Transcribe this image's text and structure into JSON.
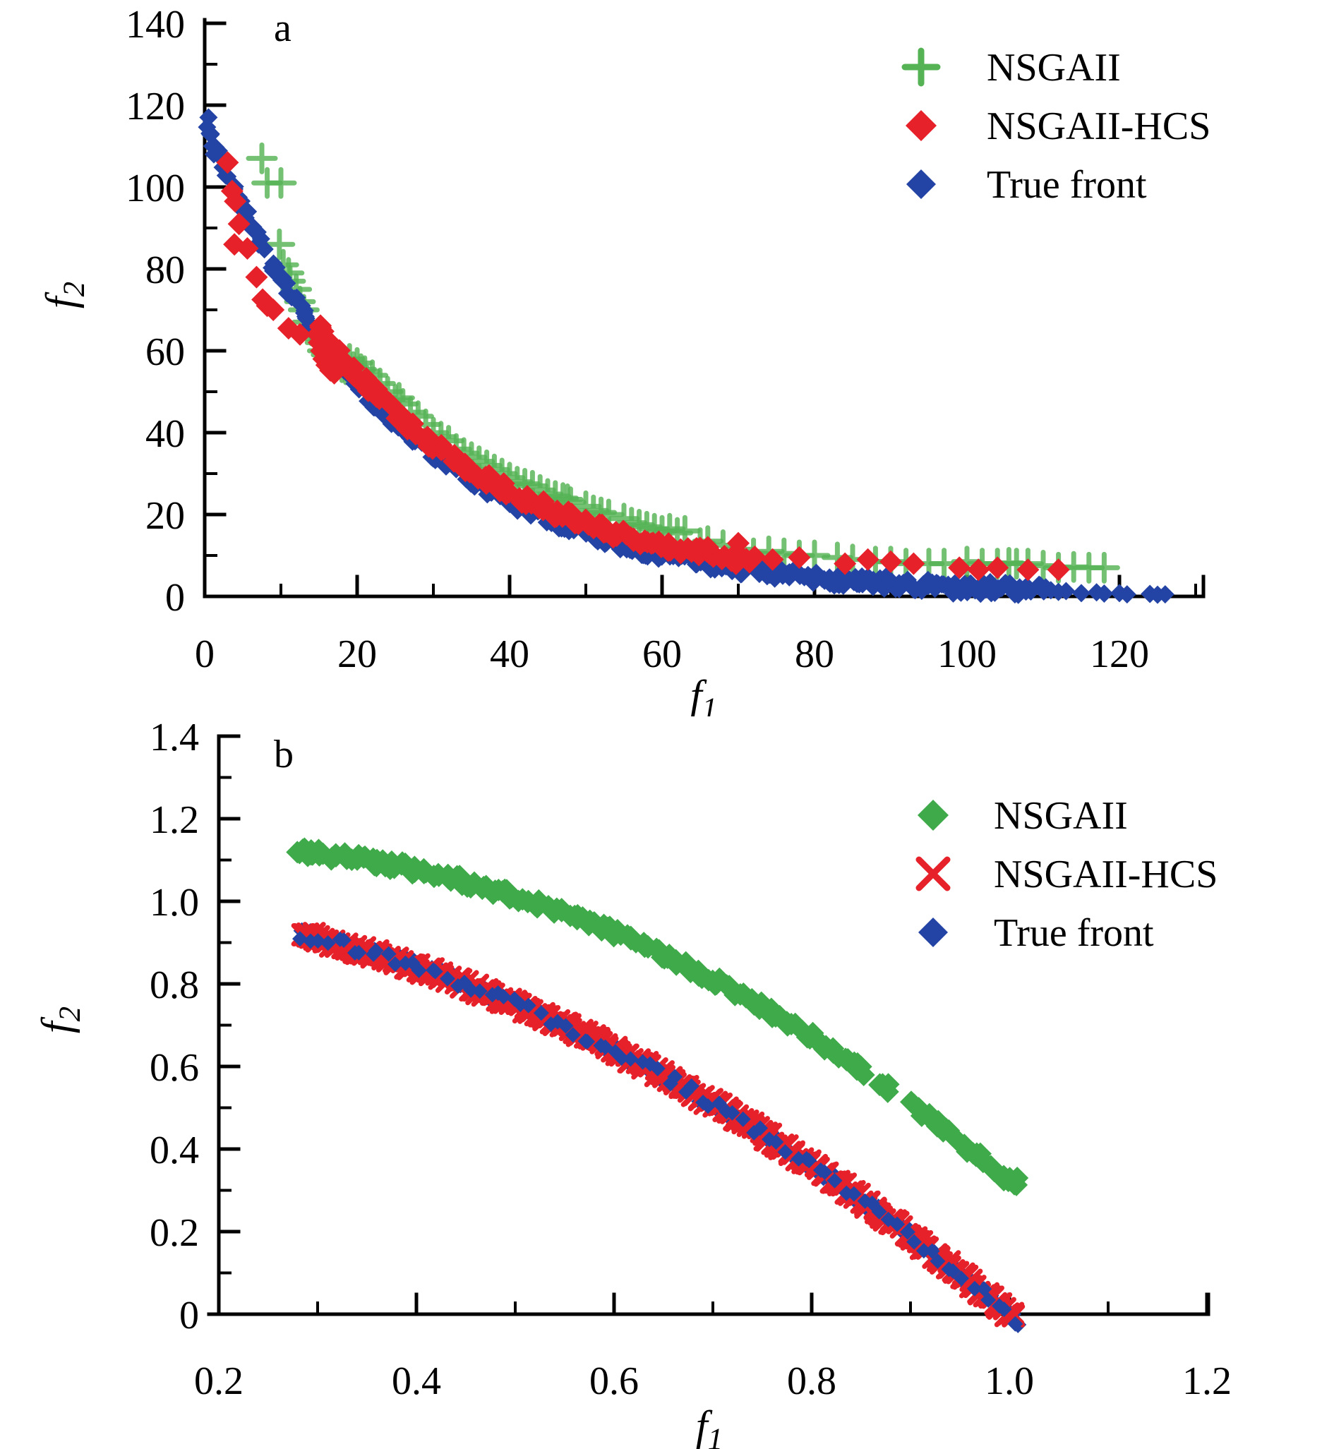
{
  "figure": {
    "background": "#ffffff",
    "description": "Two stacked scatter plots comparing Pareto fronts of NSGAII, NSGAII-HCS and the true front"
  },
  "chart_data": [
    {
      "id": "a",
      "type": "scatter",
      "panel_label": "a",
      "xlabel": {
        "base": "f",
        "sub": "1"
      },
      "ylabel": {
        "base": "f",
        "sub": "2"
      },
      "xlim": [
        0,
        131
      ],
      "ylim": [
        0,
        140.5
      ],
      "grid": false,
      "legend_position": "upper right",
      "xticks": [
        {
          "v": 0,
          "label": "0"
        },
        {
          "v": 20,
          "label": "20"
        },
        {
          "v": 40,
          "label": "40"
        },
        {
          "v": 60,
          "label": "60"
        },
        {
          "v": 80,
          "label": "80"
        },
        {
          "v": 100,
          "label": "100"
        },
        {
          "v": 120,
          "label": "120"
        }
      ],
      "xminor": [
        10,
        30,
        50,
        70,
        90,
        110,
        130
      ],
      "yticks": [
        {
          "v": 0,
          "label": "0"
        },
        {
          "v": 20,
          "label": "20"
        },
        {
          "v": 40,
          "label": "40"
        },
        {
          "v": 60,
          "label": "60"
        },
        {
          "v": 80,
          "label": "80"
        },
        {
          "v": 100,
          "label": "100"
        },
        {
          "v": 120,
          "label": "120"
        },
        {
          "v": 140,
          "label": "140"
        }
      ],
      "yminor": [
        10,
        30,
        50,
        70,
        90,
        110,
        130
      ],
      "frame": {
        "ox": 290,
        "oy": 845,
        "sx": 10.8,
        "sy": 5.8,
        "x_end": 1705,
        "y_top": 28
      },
      "tick": {
        "major": 28,
        "minor": 16
      },
      "fonts": {
        "tick": 56,
        "axis": 60,
        "legend": 56,
        "panel": 56
      },
      "label_pos": {
        "xlabels_y": 945,
        "ylabels_x": 262,
        "ylabel_dy": 20,
        "xlabel": [
          997,
          1005
        ],
        "ylabel": [
          106,
          418
        ],
        "panel": [
          388,
          58
        ]
      },
      "legend": {
        "marker_x": 1305,
        "text_x": 1398,
        "y0": 95,
        "dy": 83,
        "items": [
          {
            "label": "NSGAII",
            "marker": "plus",
            "color": "#55b356",
            "size": 23,
            "stroke": 9
          },
          {
            "label": "NSGAII-HCS",
            "marker": "diamond",
            "color": "#e6212a",
            "size": 22
          },
          {
            "label": "True front",
            "marker": "diamond",
            "color": "#2444a5",
            "size": 21
          }
        ]
      },
      "series": [
        {
          "name": "NSGAII",
          "marker": "plus",
          "color": "#55b356",
          "opacity": 0.82,
          "size": 19,
          "stroke": 7,
          "points": [
            [
              7.5,
              107
            ],
            [
              8.2,
              101
            ],
            [
              10,
              101
            ],
            [
              9.8,
              86
            ],
            [
              10.3,
              81
            ],
            [
              11,
              79
            ],
            [
              11.2,
              77
            ],
            [
              12,
              75
            ],
            [
              12.5,
              72
            ],
            [
              13,
              70
            ],
            [
              13.5,
              67
            ],
            [
              14,
              65
            ],
            [
              15,
              63
            ],
            [
              15.2,
              62
            ],
            [
              15.5,
              60
            ],
            [
              16,
              59
            ],
            [
              16.5,
              58
            ],
            [
              17,
              57.5
            ],
            [
              17.5,
              57
            ],
            [
              18,
              56
            ],
            [
              18.5,
              55.5
            ],
            [
              19,
              58
            ],
            [
              19.5,
              56
            ],
            [
              20,
              57
            ],
            [
              20.5,
              55.5
            ],
            [
              21,
              55
            ],
            [
              22,
              54
            ],
            [
              23,
              52
            ],
            [
              24,
              50
            ],
            [
              25,
              48
            ],
            [
              25.5,
              48.5
            ],
            [
              26,
              47
            ],
            [
              27,
              45
            ],
            [
              28,
              44
            ],
            [
              29,
              42
            ],
            [
              30,
              40
            ],
            [
              31,
              39
            ],
            [
              32,
              38
            ],
            [
              33,
              36
            ],
            [
              34,
              35
            ],
            [
              35,
              34
            ],
            [
              36,
              33
            ],
            [
              37,
              32
            ],
            [
              38,
              31
            ],
            [
              39,
              30
            ],
            [
              40,
              29
            ],
            [
              41,
              28
            ],
            [
              42,
              27.5
            ],
            [
              43,
              27
            ],
            [
              44,
              26
            ],
            [
              45,
              25
            ],
            [
              46,
              24.5
            ],
            [
              47,
              24
            ],
            [
              47.6,
              23.7
            ],
            [
              48,
              23
            ],
            [
              50,
              22
            ],
            [
              51,
              21
            ],
            [
              52,
              20.5
            ],
            [
              53,
              20
            ],
            [
              55,
              19
            ],
            [
              56,
              18
            ],
            [
              57,
              17.5
            ],
            [
              58,
              17
            ],
            [
              59,
              16.5
            ],
            [
              60,
              16
            ],
            [
              61,
              16.5
            ],
            [
              62,
              15.5
            ],
            [
              63,
              16
            ],
            [
              65,
              13
            ],
            [
              66,
              13.5
            ],
            [
              68,
              12.5
            ],
            [
              70,
              11.5
            ],
            [
              72,
              10.5
            ],
            [
              74,
              11
            ],
            [
              76,
              10.5
            ],
            [
              78,
              10
            ],
            [
              80,
              10
            ],
            [
              83,
              9.5
            ],
            [
              85,
              9
            ],
            [
              88,
              8.5
            ],
            [
              90,
              8.5
            ],
            [
              92,
              8
            ],
            [
              95,
              8
            ],
            [
              97,
              8
            ],
            [
              100,
              8.5
            ],
            [
              102,
              8
            ],
            [
              104,
              8
            ],
            [
              105.5,
              8.2
            ],
            [
              106.5,
              8
            ],
            [
              108,
              8
            ],
            [
              110,
              7.5
            ],
            [
              112,
              7
            ],
            [
              114,
              7.2
            ],
            [
              116,
              7
            ],
            [
              118,
              7
            ]
          ]
        },
        {
          "name": "True front",
          "marker": "diamond",
          "color": "#2444a5",
          "size": 13,
          "band": {
            "curve": "exp",
            "A": 116,
            "tau": 25,
            "off": 0,
            "x0": 0.3,
            "x1": 110,
            "n": 350,
            "jx": 0.7,
            "jy": 1.6,
            "seed": 11
          },
          "points": [
            [
              0.5,
              117
            ],
            [
              0.8,
              113
            ],
            [
              1,
              110
            ],
            [
              1.2,
              108
            ],
            [
              111,
              1.5
            ],
            [
              112,
              1.1
            ],
            [
              113,
              1.3
            ],
            [
              115,
              0.8
            ],
            [
              117,
              1.0
            ],
            [
              118,
              0.7
            ],
            [
              120,
              0.8
            ],
            [
              121,
              0.5
            ],
            [
              124,
              0.6
            ],
            [
              125,
              0.4
            ],
            [
              126,
              0.5
            ]
          ]
        },
        {
          "name": "NSGAII-HCS",
          "marker": "diamond",
          "color": "#e6212a",
          "size": 16,
          "band": {
            "curve": "exp",
            "A": 116,
            "tau": 25,
            "off": 2.2,
            "x0": 15,
            "x1": 72,
            "n": 120,
            "jx": 0.5,
            "jy": 1.4,
            "seed": 5
          },
          "points": [
            [
              3,
              106
            ],
            [
              3.6,
              99
            ],
            [
              4,
              96.5
            ],
            [
              4.5,
              91
            ],
            [
              3.9,
              86
            ],
            [
              5.6,
              85
            ],
            [
              6.8,
              78
            ],
            [
              7.6,
              72.5
            ],
            [
              8.2,
              71
            ],
            [
              9,
              70
            ],
            [
              11,
              65.5
            ],
            [
              12.5,
              64
            ],
            [
              14.8,
              64
            ],
            [
              15,
              62
            ],
            [
              15.3,
              60
            ],
            [
              15.6,
              58
            ],
            [
              16,
              56.5
            ],
            [
              16.5,
              55.2
            ],
            [
              17,
              54.5
            ],
            [
              66,
              12
            ],
            [
              70,
              13
            ],
            [
              74.5,
              9
            ],
            [
              78,
              9.5
            ],
            [
              84,
              8
            ],
            [
              87,
              9
            ],
            [
              90,
              8.5
            ],
            [
              93,
              8
            ],
            [
              99,
              7
            ],
            [
              101.5,
              6.5
            ],
            [
              104,
              7
            ],
            [
              108,
              6.5
            ],
            [
              112,
              6.5
            ]
          ]
        }
      ]
    },
    {
      "id": "b",
      "type": "scatter",
      "panel_label": "b",
      "xlabel": {
        "base": "f",
        "sub": "1"
      },
      "ylabel": {
        "base": "f",
        "sub": "2"
      },
      "xlim": [
        0.2,
        1.2
      ],
      "ylim": [
        0,
        1.4
      ],
      "grid": false,
      "legend_position": "upper right",
      "xticks": [
        {
          "v": 0.2,
          "label": "0.2"
        },
        {
          "v": 0.4,
          "label": "0.4"
        },
        {
          "v": 0.6,
          "label": "0.6"
        },
        {
          "v": 0.8,
          "label": "0.8"
        },
        {
          "v": 1.0,
          "label": "1.0"
        },
        {
          "v": 1.2,
          "label": "1.2"
        }
      ],
      "xminor": [
        0.3,
        0.5,
        0.7,
        0.9,
        1.1
      ],
      "yticks": [
        {
          "v": 0,
          "label": "0"
        },
        {
          "v": 0.2,
          "label": "0.2"
        },
        {
          "v": 0.4,
          "label": "0.4"
        },
        {
          "v": 0.6,
          "label": "0.6"
        },
        {
          "v": 0.8,
          "label": "0.8"
        },
        {
          "v": 1.0,
          "label": "1.0"
        },
        {
          "v": 1.2,
          "label": "1.2"
        },
        {
          "v": 1.4,
          "label": "1.4"
        }
      ],
      "yminor": [
        0.1,
        0.3,
        0.5,
        0.7,
        0.9,
        1.1,
        1.3
      ],
      "frame": {
        "ox": 310,
        "oy": 847,
        "sx": 1400,
        "sy": 585,
        "x_end": 1712,
        "y_top": 28,
        "axis_x_start": 296
      },
      "tick": {
        "major": 28,
        "minor": 16
      },
      "fonts": {
        "tick": 56,
        "axis": 60,
        "legend": 56,
        "panel": 56
      },
      "label_pos": {
        "xlabels_y": 960,
        "ylabels_x": 282,
        "ylabel_dy": 20,
        "xlabel": [
          1005,
          1025
        ],
        "ylabel": [
          100,
          430
        ],
        "panel": [
          388,
          72
        ]
      },
      "legend": {
        "marker_x": 1322,
        "text_x": 1408,
        "y0": 140,
        "dy": 83,
        "items": [
          {
            "label": "NSGAII",
            "marker": "diamond",
            "color": "#3faa4a",
            "size": 22
          },
          {
            "label": "NSGAII-HCS",
            "marker": "x",
            "color": "#e6212a",
            "size": 20,
            "stroke": 9
          },
          {
            "label": "True front",
            "marker": "diamond",
            "color": "#2444a5",
            "size": 21
          }
        ]
      },
      "series": [
        {
          "name": "NSGAII",
          "marker": "diamond",
          "color": "#3faa4a",
          "size": 16,
          "band": {
            "curve": "quad",
            "a": 1.083,
            "b": 0.481,
            "c": -1.244,
            "x0": 0.28,
            "x1": 1.005,
            "n": 210,
            "jx": 0.004,
            "jy": 0.011,
            "seed": 21,
            "gaps": [
              [
                0.858,
                0.864
              ],
              [
                0.885,
                0.9
              ]
            ]
          },
          "points": [
            [
              0.285,
              1.125
            ],
            [
              0.29,
              1.11
            ],
            [
              1.0,
              0.325
            ],
            [
              1.005,
              0.315
            ],
            [
              1.008,
              0.33
            ]
          ]
        },
        {
          "name": "True front",
          "marker": "diamond",
          "color": "#2444a5",
          "size": 12,
          "band": {
            "curve": "quad",
            "a": 1,
            "b": 0,
            "c": -1,
            "x0": 0.283,
            "x1": 1.007,
            "n": 180,
            "jx": 0.003,
            "jy": 0.014,
            "seed": 31
          }
        },
        {
          "name": "NSGAII-HCS",
          "marker": "x",
          "color": "#e6212a",
          "size": 13,
          "stroke": 7,
          "band": {
            "curve": "quad",
            "a": 1,
            "b": 0,
            "c": -1,
            "x0": 0.283,
            "x1": 1.005,
            "n": 300,
            "jx": 0.003,
            "jy": 0.011,
            "seed": 41
          }
        },
        {
          "name": "True front",
          "marker": "diamond",
          "color": "#2444a5",
          "size": 11,
          "band": {
            "curve": "quad",
            "a": 1,
            "b": 0,
            "c": -1,
            "x0": 0.285,
            "x1": 1.006,
            "n": 85,
            "jx": 0.004,
            "jy": 0.013,
            "seed": 51
          }
        }
      ]
    }
  ]
}
